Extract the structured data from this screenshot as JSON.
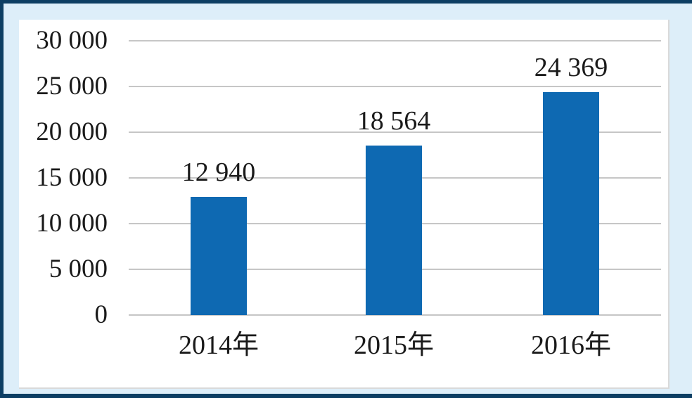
{
  "colors": {
    "frame_border": "#0d3e63",
    "frame_background": "#ddeef9",
    "panel_background": "#ffffff",
    "panel_border": "#d9d9d9",
    "text": "#1a1a1a"
  },
  "chart_data": {
    "type": "bar",
    "title": "",
    "xlabel": "",
    "ylabel": "",
    "categories": [
      "2014年",
      "2015年",
      "2016年"
    ],
    "values": [
      12940,
      18564,
      24369
    ],
    "value_labels": [
      "12 940",
      "18 564",
      "24 369"
    ],
    "y_ticks": [
      {
        "value": 0,
        "label": "0"
      },
      {
        "value": 5000,
        "label": "5 000"
      },
      {
        "value": 10000,
        "label": "10 000"
      },
      {
        "value": 15000,
        "label": "15 000"
      },
      {
        "value": 20000,
        "label": "20 000"
      },
      {
        "value": 25000,
        "label": "25 000"
      },
      {
        "value": 30000,
        "label": "30 000"
      }
    ],
    "ylim": [
      0,
      30000
    ],
    "grid": true,
    "legend": false,
    "bar_color": "#0e69b2",
    "gridline_color": "#c6c6c6"
  }
}
